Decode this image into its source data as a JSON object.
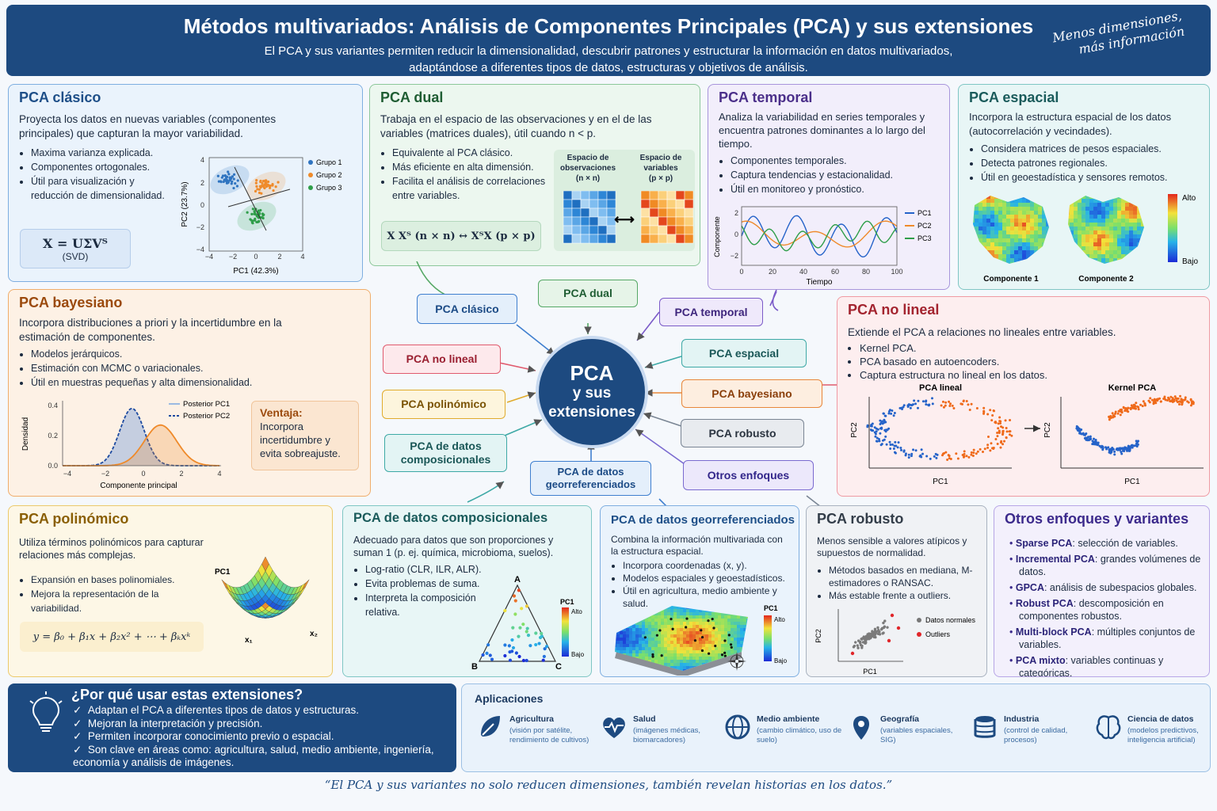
{
  "header": {
    "title": "Métodos multivariados: Análisis de Componentes Principales (PCA) y sus extensiones",
    "subtitle_1": "El PCA y sus variantes permiten reducir la dimensionalidad, descubrir patrones y estructurar la información en datos multivariados,",
    "subtitle_2": "adaptándose a diferentes tipos de datos, estructuras y objetivos de análisis.",
    "note_1": "Menos dimensiones,",
    "note_2": "más información"
  },
  "classic": {
    "title": "PCA clásico",
    "desc": "Proyecta los datos en nuevas variables (componentes principales) que capturan la mayor variabilidad.",
    "items": [
      "Maxima varianza explicada.",
      "Componentes ortogonales.",
      "Útil para visualización y reducción de dimensionalidad."
    ],
    "formula": "X = UΣVᵀ",
    "formula_note": "(SVD)",
    "xlabel": "PC1 (42.3%)",
    "ylabel": "PC2 (23.7%)",
    "legend": [
      "Grupo 1",
      "Grupo 2",
      "Grupo 3"
    ],
    "xticks": [
      "−4",
      "−2",
      "0",
      "2",
      "4"
    ],
    "yticks": [
      "4",
      "2",
      "0",
      "−2",
      "−4"
    ]
  },
  "dual": {
    "title": "PCA dual",
    "desc": "Trabaja en el espacio de las observaciones y en el de las variables (matrices duales), útil cuando n < p.",
    "items": [
      "Equivalente al PCA clásico.",
      "Más eficiente en alta dimensión.",
      "Facilita el análisis de correlaciones entre variables."
    ],
    "formula": "X Xᵀ (n × n)  ↔  XᵀX (p × p)",
    "m1_title": "Espacio de observaciones",
    "m1_dim": "(n × n)",
    "m2_title": "Espacio de variables",
    "m2_dim": "(p × p)"
  },
  "temporal": {
    "title": "PCA temporal",
    "desc": "Analiza la variabilidad en series temporales y encuentra patrones dominantes a lo largo del tiempo.",
    "items": [
      "Componentes temporales.",
      "Captura tendencias y estacionalidad.",
      "Útil en monitoreo y pronóstico."
    ],
    "xlabel": "Tiempo",
    "ylabel": "Componente",
    "legend": [
      "PC1",
      "PC2",
      "PC3"
    ],
    "xticks": [
      "0",
      "20",
      "40",
      "60",
      "80",
      "100"
    ],
    "yticks": [
      "2",
      "0",
      "−2"
    ]
  },
  "spatial": {
    "title": "PCA espacial",
    "desc": "Incorpora la estructura espacial de los datos (autocorrelación y vecindades).",
    "items": [
      "Considera matrices de pesos espaciales.",
      "Detecta patrones regionales.",
      "Útil en geoestadística y sensores remotos."
    ],
    "map1": "Componente 1",
    "map2": "Componente 2",
    "high": "Alto",
    "low": "Bajo"
  },
  "bayes": {
    "title": "PCA bayesiano",
    "desc": "Incorpora distribuciones a priori y la incertidumbre en la estimación de componentes.",
    "items": [
      "Modelos jerárquicos.",
      "Estimación con MCMC o variacionales.",
      "Útil en muestras pequeñas y alta dimensionalidad."
    ],
    "legend": [
      "Posterior PC1",
      "Posterior PC2"
    ],
    "xlabel": "Componente principal",
    "ylabel": "Densidad",
    "xticks": [
      "−4",
      "−2",
      "0",
      "2",
      "4"
    ],
    "yticks": [
      "0.4",
      "0.2",
      "0.0"
    ],
    "adv_title": "Ventaja:",
    "adv_text": "Incorpora incertidumbre y evita sobreajuste."
  },
  "center": {
    "l1": "PCA",
    "l2": "y sus",
    "l3": "extensiones"
  },
  "nodes": {
    "classic": "PCA clásico",
    "dual": "PCA dual",
    "temporal": "PCA temporal",
    "nonlinear": "PCA no lineal",
    "spatial": "PCA espacial",
    "poly": "PCA polinómico",
    "bayes": "PCA bayesiano",
    "comp": "PCA de datos composicionales",
    "robust": "PCA robusto",
    "geo": "PCA de datos georreferenciados",
    "other": "Otros enfoques"
  },
  "nonlinear": {
    "title": "PCA no lineal",
    "desc": "Extiende el PCA a relaciones no lineales entre variables.",
    "items": [
      "Kernel PCA.",
      "PCA basado en autoencoders.",
      "Captura estructura no lineal en los datos."
    ],
    "p1": "PCA lineal",
    "p2": "Kernel PCA",
    "xlabel": "PC1",
    "ylabel": "PC2"
  },
  "poly": {
    "title": "PCA polinómico",
    "desc": "Utiliza términos polinómicos para capturar relaciones más complejas.",
    "items": [
      "Expansión en bases polinomiales.",
      "Mejora la representación de la variabilidad."
    ],
    "formula": "y = β₀ + β₁x + β₂x² + ⋯ + βₖxᵏ",
    "zlabel": "PC1",
    "x1": "x₁",
    "x2": "x₂"
  },
  "comp": {
    "title": "PCA de datos composicionales",
    "desc": "Adecuado para datos que son proporciones y suman 1 (p. ej. química, microbioma, suelos).",
    "items": [
      "Log-ratio (CLR, ILR, ALR).",
      "Evita problemas de suma.",
      "Interpreta la composición relativa."
    ],
    "a": "A",
    "b": "B",
    "c": "C",
    "cb": "PC1",
    "high": "Alto",
    "low": "Bajo"
  },
  "geo": {
    "title": "PCA de datos georreferenciados",
    "desc": "Combina la información multivariada con la estructura espacial.",
    "items": [
      "Incorpora coordenadas (x, y).",
      "Modelos espaciales y geoestadísticos.",
      "Útil en agricultura, medio ambiente y salud."
    ],
    "cb": "PC1",
    "high": "Alto",
    "low": "Bajo"
  },
  "robust": {
    "title": "PCA robusto",
    "desc": "Menos sensible a valores atípicos y supuestos de normalidad.",
    "items": [
      "Métodos basados en mediana, M-estimadores o RANSAC.",
      "Más estable frente a outliers."
    ],
    "legend": [
      "Datos normales",
      "Outliers"
    ],
    "xlabel": "PC1",
    "ylabel": "PC2"
  },
  "other": {
    "title": "Otros enfoques y variantes",
    "items": [
      {
        "b": "Sparse PCA",
        "t": ": selección de variables."
      },
      {
        "b": "Incremental PCA",
        "t": ": grandes volúmenes de datos."
      },
      {
        "b": "GPCA",
        "t": ": análisis de subespacios globales."
      },
      {
        "b": "Robust PCA",
        "t": ": descomposición en componentes robustos."
      },
      {
        "b": "Multi-block PCA",
        "t": ": múltiples conjuntos de variables."
      },
      {
        "b": "PCA mixto",
        "t": ": variables continuas y categóricas."
      }
    ]
  },
  "why": {
    "title": "¿Por qué usar estas extensiones?",
    "items": [
      "Adaptan el PCA a diferentes tipos de datos y estructuras.",
      "Mejoran la interpretación y precisión.",
      "Permiten incorporar conocimiento previo o espacial.",
      "Son clave en áreas como: agricultura, salud, medio ambiente, ingeniería, economía y análisis de imágenes."
    ]
  },
  "apps": {
    "title": "Aplicaciones",
    "items": [
      {
        "name": "Agricultura",
        "sub": "(visión por satélite, rendimiento de cultivos)",
        "icon": "leaf-icon"
      },
      {
        "name": "Salud",
        "sub": "(imágenes médicas, biomarcadores)",
        "icon": "heart-pulse-icon"
      },
      {
        "name": "Medio ambiente",
        "sub": "(cambio climático, uso de suelo)",
        "icon": "globe-icon"
      },
      {
        "name": "Geografía",
        "sub": "(variables espaciales, SIG)",
        "icon": "map-pin-icon"
      },
      {
        "name": "Industria",
        "sub": "(control de calidad, procesos)",
        "icon": "database-icon"
      },
      {
        "name": "Ciencia de datos",
        "sub": "(modelos predictivos, inteligencia artificial)",
        "icon": "brain-icon"
      }
    ]
  },
  "quote": "“El PCA y sus variantes no solo reducen dimensiones, también revelan historias en los datos.”"
}
